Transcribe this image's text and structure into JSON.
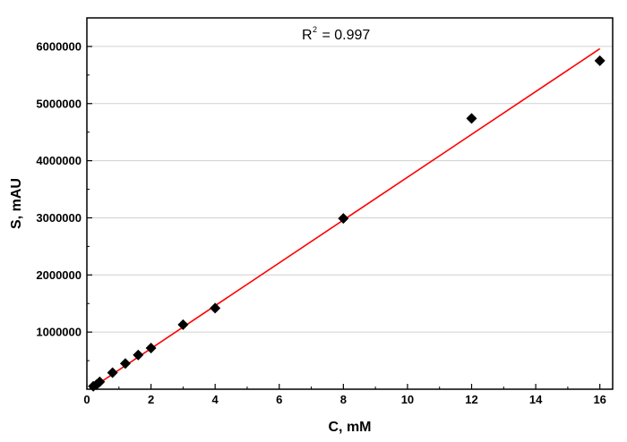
{
  "chart_data": {
    "type": "scatter",
    "title": "",
    "xlabel": "C, mM",
    "ylabel": "S, mAU",
    "xlim": [
      0,
      16.4
    ],
    "ylim": [
      0,
      6500000
    ],
    "x_ticks": [
      0,
      2,
      4,
      6,
      8,
      10,
      12,
      14,
      16
    ],
    "x_tick_labels": [
      "0",
      "2",
      "4",
      "6",
      "8",
      "10",
      "12",
      "14",
      "16"
    ],
    "y_ticks": [
      1000000,
      2000000,
      3000000,
      4000000,
      5000000,
      6000000
    ],
    "y_tick_labels": [
      "1000000",
      "2000000",
      "3000000",
      "4000000",
      "5000000",
      "6000000"
    ],
    "grid": "horizontal",
    "annotation": {
      "base": "R",
      "sup": "2",
      "rest": " = 0.997"
    },
    "series": [
      {
        "marker": "diamond",
        "color": "#000000",
        "points": [
          [
            0.2,
            50000
          ],
          [
            0.3,
            80000
          ],
          [
            0.4,
            130000
          ],
          [
            0.8,
            290000
          ],
          [
            1.2,
            450000
          ],
          [
            1.6,
            600000
          ],
          [
            2.0,
            720000
          ],
          [
            3.0,
            1130000
          ],
          [
            4.0,
            1420000
          ],
          [
            8.0,
            2990000
          ],
          [
            12.0,
            4740000
          ],
          [
            16.0,
            5750000
          ]
        ]
      }
    ],
    "fit": {
      "color": "#ff0000",
      "x": [
        0.1,
        16.0
      ],
      "y": [
        0,
        5960000
      ]
    }
  }
}
